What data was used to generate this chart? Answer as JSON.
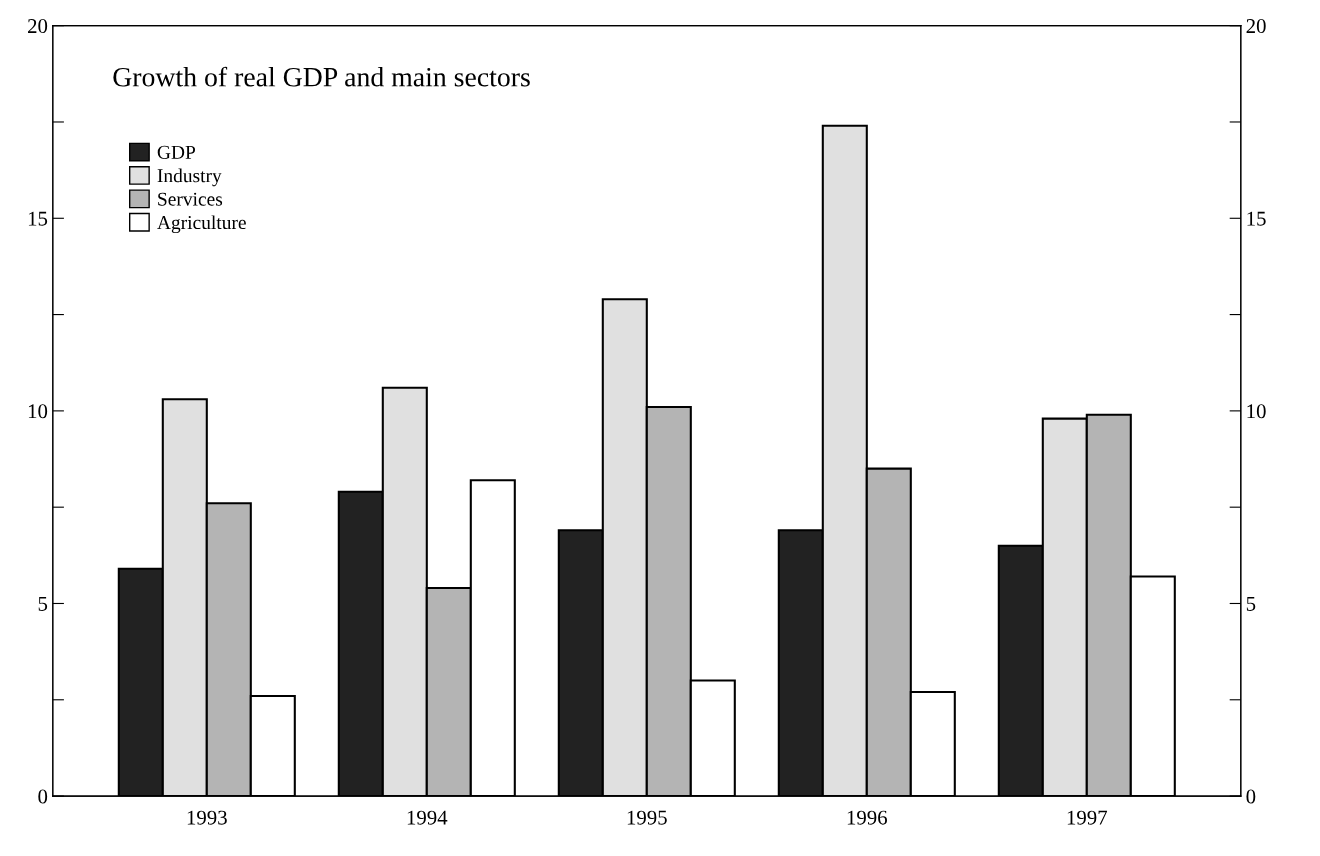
{
  "chart_data": {
    "type": "bar",
    "title": "Growth of real GDP and main sectors",
    "categories": [
      "1993",
      "1994",
      "1995",
      "1996",
      "1997"
    ],
    "series": [
      {
        "name": "GDP",
        "color": "#222222",
        "values": [
          5.9,
          7.9,
          6.9,
          6.9,
          6.5
        ]
      },
      {
        "name": "Industry",
        "color": "#e0e0e0",
        "values": [
          10.3,
          10.6,
          12.9,
          17.4,
          9.8
        ]
      },
      {
        "name": "Services",
        "color": "#b4b4b4",
        "values": [
          7.6,
          5.4,
          10.1,
          8.5,
          9.9
        ]
      },
      {
        "name": "Agriculture",
        "color": "#ffffff",
        "values": [
          2.6,
          8.2,
          3.0,
          2.7,
          5.7
        ]
      }
    ],
    "ylim": [
      0,
      20
    ],
    "yticks": [
      0,
      {
        "value": 2.5,
        "label": null
      },
      5,
      {
        "value": 7.5,
        "label": null
      },
      10,
      {
        "value": 12.5,
        "label": null
      },
      15,
      {
        "value": 17.5,
        "label": null
      },
      20
    ],
    "y2lim": [
      0,
      20
    ],
    "y2ticks": [
      0,
      {
        "value": 2.5,
        "label": null
      },
      5,
      {
        "value": 7.5,
        "label": null
      },
      10,
      {
        "value": 12.5,
        "label": null
      },
      15,
      {
        "value": 17.5,
        "label": null
      },
      20
    ],
    "legend": "top left",
    "grid": false
  }
}
